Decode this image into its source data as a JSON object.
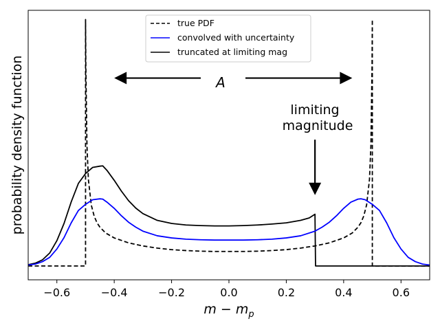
{
  "chart_data": {
    "type": "line",
    "title": "",
    "xlabel": "m − m",
    "xlabel_subscript": "p",
    "ylabel": "probability density function",
    "xlim": [
      -0.7,
      0.7
    ],
    "ylim": [
      -0.45,
      8.3
    ],
    "x_ticks": [
      -0.6,
      -0.4,
      -0.2,
      0.0,
      0.2,
      0.4,
      0.6
    ],
    "x_tick_labels": [
      "−0.6",
      "−0.4",
      "−0.2",
      "0.0",
      "0.2",
      "0.4",
      "0.6"
    ],
    "y_ticks_shown": false,
    "legend_position": "top-center",
    "series": [
      {
        "name": "true PDF",
        "color": "#000000",
        "style": "dashed",
        "x": [
          -0.7,
          -0.5,
          -0.5,
          -0.499,
          -0.495,
          -0.49,
          -0.48,
          -0.47,
          -0.46,
          -0.45,
          -0.43,
          -0.4,
          -0.35,
          -0.3,
          -0.25,
          -0.2,
          -0.15,
          -0.1,
          -0.05,
          0.0,
          0.05,
          0.1,
          0.15,
          0.2,
          0.25,
          0.3,
          0.35,
          0.4,
          0.43,
          0.45,
          0.46,
          0.47,
          0.48,
          0.49,
          0.495,
          0.499,
          0.5,
          0.5,
          0.7
        ],
        "y": [
          0.0,
          0.0,
          8.0,
          6.5,
          3.9,
          2.8,
          1.98,
          1.62,
          1.4,
          1.26,
          1.07,
          0.91,
          0.75,
          0.65,
          0.58,
          0.53,
          0.5,
          0.48,
          0.47,
          0.47,
          0.47,
          0.48,
          0.5,
          0.53,
          0.58,
          0.65,
          0.75,
          0.91,
          1.07,
          1.26,
          1.4,
          1.62,
          1.98,
          2.8,
          3.9,
          6.5,
          8.0,
          0.0,
          0.0
        ]
      },
      {
        "name": "convolved with uncertainty",
        "color": "#0000ff",
        "style": "solid",
        "x": [
          -0.7,
          -0.675,
          -0.65,
          -0.625,
          -0.6,
          -0.575,
          -0.55,
          -0.525,
          -0.5,
          -0.475,
          -0.45,
          -0.44,
          -0.425,
          -0.4,
          -0.375,
          -0.35,
          -0.325,
          -0.3,
          -0.25,
          -0.2,
          -0.15,
          -0.1,
          -0.05,
          0.0,
          0.05,
          0.1,
          0.15,
          0.2,
          0.25,
          0.3,
          0.325,
          0.35,
          0.375,
          0.4,
          0.425,
          0.45,
          0.46,
          0.475,
          0.5,
          0.525,
          0.55,
          0.575,
          0.6,
          0.625,
          0.65,
          0.675,
          0.7
        ],
        "y": [
          0.03,
          0.06,
          0.14,
          0.28,
          0.55,
          0.92,
          1.4,
          1.8,
          2.0,
          2.15,
          2.18,
          2.17,
          2.07,
          1.87,
          1.63,
          1.42,
          1.26,
          1.13,
          0.98,
          0.91,
          0.87,
          0.85,
          0.84,
          0.84,
          0.84,
          0.85,
          0.87,
          0.91,
          0.98,
          1.13,
          1.26,
          1.42,
          1.63,
          1.87,
          2.07,
          2.17,
          2.18,
          2.15,
          2.0,
          1.8,
          1.4,
          0.92,
          0.55,
          0.28,
          0.14,
          0.06,
          0.03
        ]
      },
      {
        "name": "truncated at limiting mag",
        "color": "#000000",
        "style": "solid",
        "x": [
          -0.7,
          -0.675,
          -0.65,
          -0.625,
          -0.6,
          -0.575,
          -0.55,
          -0.525,
          -0.5,
          -0.475,
          -0.45,
          -0.44,
          -0.425,
          -0.4,
          -0.375,
          -0.35,
          -0.325,
          -0.3,
          -0.25,
          -0.2,
          -0.15,
          -0.1,
          -0.05,
          0.0,
          0.05,
          0.1,
          0.15,
          0.2,
          0.25,
          0.28,
          0.3,
          0.302,
          0.7
        ],
        "y": [
          0.04,
          0.09,
          0.2,
          0.42,
          0.82,
          1.38,
          2.08,
          2.68,
          3.0,
          3.2,
          3.24,
          3.25,
          3.1,
          2.78,
          2.43,
          2.12,
          1.88,
          1.7,
          1.48,
          1.38,
          1.33,
          1.31,
          1.3,
          1.3,
          1.31,
          1.33,
          1.36,
          1.4,
          1.48,
          1.56,
          1.68,
          0.0,
          0.0
        ]
      }
    ],
    "annotations": {
      "range_label": "A",
      "limit_label_line1": "limiting",
      "limit_label_line2": "magnitude",
      "range_arrow_from": -0.4,
      "range_arrow_to": 0.43,
      "range_arrow_y": 6.1,
      "limit_arrow_x": 0.3,
      "limit_arrow_from_y": 4.1,
      "limit_arrow_to_y": 2.3
    }
  }
}
